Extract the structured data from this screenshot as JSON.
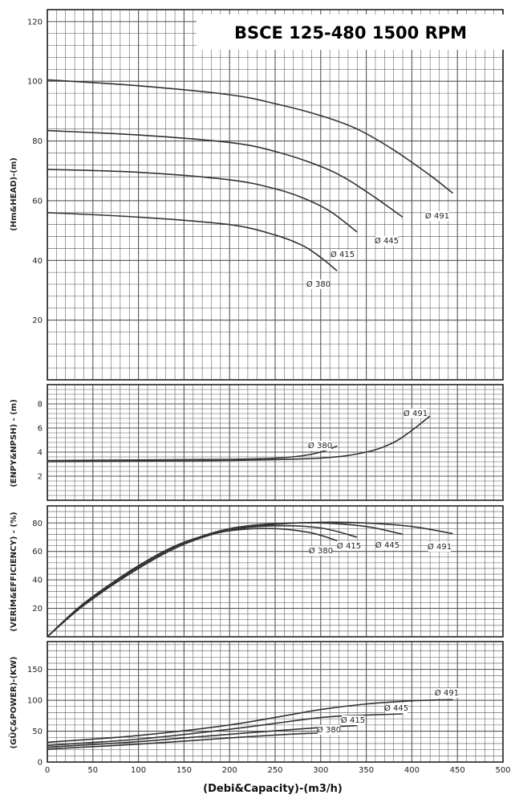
{
  "title": "BSCE 125-480 1500 RPM",
  "chart_data": {
    "type": "line",
    "xlabel": "(Debi&Capacity)-(m3/h)",
    "xlim": [
      0,
      500
    ],
    "xticks": [
      0,
      50,
      100,
      150,
      200,
      250,
      300,
      350,
      400,
      450,
      500
    ],
    "grid": true,
    "panels": [
      {
        "id": "head",
        "ylabel": "(Hm&HEAD)-(m)",
        "ylim": [
          0,
          124
        ],
        "yticks": [
          20,
          40,
          60,
          80,
          100,
          120
        ],
        "series": [
          {
            "name": "Ø 491",
            "x": [
              0,
              100,
              200,
              250,
              300,
              340,
              380,
              420,
              445
            ],
            "y": [
              100.5,
              98.5,
              95.5,
              92.5,
              88.5,
              84,
              77,
              68.5,
              62.5
            ]
          },
          {
            "name": "Ø 445",
            "x": [
              0,
              100,
              200,
              250,
              300,
              330,
              360,
              390
            ],
            "y": [
              83.5,
              82,
              79.5,
              76.5,
              71.5,
              67,
              61,
              54.5
            ]
          },
          {
            "name": "Ø 415",
            "x": [
              0,
              100,
              200,
              250,
              280,
              310,
              340
            ],
            "y": [
              70.5,
              69.5,
              67,
              64,
              61,
              56.5,
              49.5
            ]
          },
          {
            "name": "Ø 380",
            "x": [
              0,
              100,
              200,
              250,
              280,
              300,
              318
            ],
            "y": [
              56,
              54.5,
              52,
              48.5,
              45,
              41,
              36.5
            ]
          }
        ]
      },
      {
        "id": "npsh",
        "ylabel": "(ENPY&NPSH) - (m)",
        "ylim": [
          0,
          9.6
        ],
        "yticks": [
          2,
          4,
          6,
          8
        ],
        "series": [
          {
            "name": "Ø 380",
            "x": [
              0,
              100,
              200,
              250,
              280,
              300,
              318
            ],
            "y": [
              3.3,
              3.35,
              3.4,
              3.5,
              3.7,
              4.0,
              4.5
            ]
          },
          {
            "name": "Ø 491",
            "x": [
              0,
              100,
              200,
              300,
              350,
              380,
              400,
              420
            ],
            "y": [
              3.2,
              3.25,
              3.3,
              3.5,
              4.0,
              4.8,
              5.8,
              7.0
            ]
          }
        ]
      },
      {
        "id": "efficiency",
        "ylabel": "(VERİM&EFFICIENCY) - (%)",
        "ylim": [
          0,
          92
        ],
        "yticks": [
          20,
          40,
          60,
          80
        ],
        "series": [
          {
            "name": "Ø 491",
            "x": [
              0,
              40,
              100,
              150,
              200,
              250,
              300,
              350,
              400,
              445
            ],
            "y": [
              0,
              22,
              48,
              65,
              75,
              79,
              80.5,
              80,
              77.5,
              72.5
            ]
          },
          {
            "name": "Ø 445",
            "x": [
              0,
              40,
              100,
              150,
              200,
              250,
              300,
              350,
              390
            ],
            "y": [
              0,
              22.5,
              49,
              66,
              76,
              79.5,
              80,
              77.5,
              72
            ]
          },
          {
            "name": "Ø 415",
            "x": [
              0,
              40,
              100,
              150,
              200,
              250,
              300,
              340
            ],
            "y": [
              0,
              23,
              49,
              66,
              75,
              78,
              76.5,
              70
            ]
          },
          {
            "name": "Ø 380",
            "x": [
              0,
              40,
              100,
              150,
              200,
              250,
              290,
              318
            ],
            "y": [
              0,
              23.5,
              50,
              66.5,
              74.5,
              76,
              73,
              67.5
            ]
          }
        ]
      },
      {
        "id": "power",
        "ylabel": "(GÜÇ&POWER)-(KW)",
        "ylim": [
          0,
          195
        ],
        "yticks": [
          0,
          50,
          100,
          150
        ],
        "series": [
          {
            "name": "Ø 491",
            "x": [
              0,
              100,
              200,
              300,
              350,
              400,
              445
            ],
            "y": [
              32,
              43,
              60,
              85,
              94,
              99,
              101
            ]
          },
          {
            "name": "Ø 445",
            "x": [
              0,
              100,
              200,
              300,
              350,
              390
            ],
            "y": [
              27,
              37,
              53,
              72,
              76,
              78
            ]
          },
          {
            "name": "Ø 415",
            "x": [
              0,
              100,
              200,
              300,
              340
            ],
            "y": [
              24,
              33,
              45,
              56,
              59
            ]
          },
          {
            "name": "Ø 380",
            "x": [
              0,
              100,
              200,
              280,
              318
            ],
            "y": [
              21,
              29,
              39,
              46,
              47
            ]
          }
        ]
      }
    ]
  },
  "colors": {
    "curve": "#333333",
    "grid": "#555555",
    "frame": "#222222"
  }
}
